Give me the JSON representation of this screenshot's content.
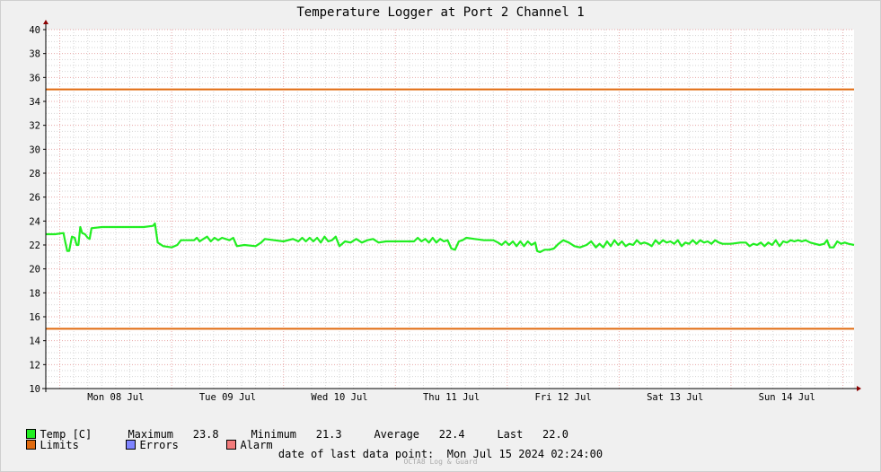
{
  "chart_data": {
    "type": "line",
    "title": "Temperature Logger at Port 2 Channel 1",
    "xlabel": "",
    "ylabel": "",
    "ylim": [
      10,
      40
    ],
    "y_ticks": [
      10,
      12,
      14,
      16,
      18,
      20,
      22,
      24,
      26,
      28,
      30,
      32,
      34,
      36,
      38,
      40
    ],
    "x_range": [
      "2024-07-07 21:00",
      "2024-07-15 02:24"
    ],
    "x_tick_labels": [
      "Mon 08 Jul",
      "Tue 09 Jul",
      "Wed 10 Jul",
      "Thu 11 Jul",
      "Fri 12 Jul",
      "Sat 13 Jul",
      "Sun 14 Jul"
    ],
    "x_tick_dates": [
      "2024-07-08 12:00",
      "2024-07-09 12:00",
      "2024-07-10 12:00",
      "2024-07-11 12:00",
      "2024-07-12 12:00",
      "2024-07-13 12:00",
      "2024-07-14 12:00"
    ],
    "grid": true,
    "limits": {
      "upper": 35,
      "lower": 15
    },
    "series": [
      {
        "name": "Temp [C]",
        "color": "#22ee22",
        "points": [
          [
            "2024-07-07 21:00",
            22.9
          ],
          [
            "2024-07-07 23:00",
            22.9
          ],
          [
            "2024-07-08 00:48",
            23.0
          ],
          [
            "2024-07-08 01:12",
            22.2
          ],
          [
            "2024-07-08 01:36",
            21.5
          ],
          [
            "2024-07-08 02:00",
            21.5
          ],
          [
            "2024-07-08 02:36",
            22.7
          ],
          [
            "2024-07-08 03:12",
            22.6
          ],
          [
            "2024-07-08 03:36",
            22.0
          ],
          [
            "2024-07-08 04:00",
            22.0
          ],
          [
            "2024-07-08 04:24",
            23.5
          ],
          [
            "2024-07-08 04:48",
            23.0
          ],
          [
            "2024-07-08 05:24",
            22.9
          ],
          [
            "2024-07-08 06:00",
            22.6
          ],
          [
            "2024-07-08 06:24",
            22.5
          ],
          [
            "2024-07-08 06:48",
            23.4
          ],
          [
            "2024-07-08 09:00",
            23.5
          ],
          [
            "2024-07-08 12:00",
            23.5
          ],
          [
            "2024-07-08 15:00",
            23.5
          ],
          [
            "2024-07-08 18:00",
            23.5
          ],
          [
            "2024-07-08 20:00",
            23.6
          ],
          [
            "2024-07-08 20:24",
            23.8
          ],
          [
            "2024-07-08 21:00",
            22.2
          ],
          [
            "2024-07-08 22:12",
            21.9
          ],
          [
            "2024-07-09 00:00",
            21.8
          ],
          [
            "2024-07-09 01:12",
            22.0
          ],
          [
            "2024-07-09 02:00",
            22.4
          ],
          [
            "2024-07-09 04:48",
            22.4
          ],
          [
            "2024-07-09 05:24",
            22.6
          ],
          [
            "2024-07-09 06:00",
            22.3
          ],
          [
            "2024-07-09 06:48",
            22.5
          ],
          [
            "2024-07-09 07:36",
            22.7
          ],
          [
            "2024-07-09 08:24",
            22.3
          ],
          [
            "2024-07-09 09:12",
            22.6
          ],
          [
            "2024-07-09 10:00",
            22.4
          ],
          [
            "2024-07-09 10:48",
            22.6
          ],
          [
            "2024-07-09 11:36",
            22.5
          ],
          [
            "2024-07-09 12:24",
            22.4
          ],
          [
            "2024-07-09 13:12",
            22.6
          ],
          [
            "2024-07-09 14:00",
            21.9
          ],
          [
            "2024-07-09 15:36",
            22.0
          ],
          [
            "2024-07-09 18:00",
            21.9
          ],
          [
            "2024-07-09 19:12",
            22.2
          ],
          [
            "2024-07-09 20:00",
            22.5
          ],
          [
            "2024-07-09 22:00",
            22.4
          ],
          [
            "2024-07-10 00:00",
            22.3
          ],
          [
            "2024-07-10 02:00",
            22.5
          ],
          [
            "2024-07-10 03:12",
            22.3
          ],
          [
            "2024-07-10 04:00",
            22.6
          ],
          [
            "2024-07-10 04:48",
            22.3
          ],
          [
            "2024-07-10 05:36",
            22.6
          ],
          [
            "2024-07-10 06:24",
            22.3
          ],
          [
            "2024-07-10 07:12",
            22.6
          ],
          [
            "2024-07-10 08:00",
            22.2
          ],
          [
            "2024-07-10 08:48",
            22.7
          ],
          [
            "2024-07-10 09:36",
            22.3
          ],
          [
            "2024-07-10 10:24",
            22.4
          ],
          [
            "2024-07-10 11:12",
            22.7
          ],
          [
            "2024-07-10 12:00",
            21.9
          ],
          [
            "2024-07-10 13:12",
            22.3
          ],
          [
            "2024-07-10 14:24",
            22.2
          ],
          [
            "2024-07-10 15:36",
            22.5
          ],
          [
            "2024-07-10 16:48",
            22.2
          ],
          [
            "2024-07-10 18:00",
            22.4
          ],
          [
            "2024-07-10 19:12",
            22.5
          ],
          [
            "2024-07-10 20:24",
            22.2
          ],
          [
            "2024-07-10 22:00",
            22.3
          ],
          [
            "2024-07-11 04:00",
            22.3
          ],
          [
            "2024-07-11 04:48",
            22.6
          ],
          [
            "2024-07-11 05:36",
            22.3
          ],
          [
            "2024-07-11 06:24",
            22.5
          ],
          [
            "2024-07-11 07:12",
            22.2
          ],
          [
            "2024-07-11 08:00",
            22.6
          ],
          [
            "2024-07-11 08:48",
            22.2
          ],
          [
            "2024-07-11 09:36",
            22.5
          ],
          [
            "2024-07-11 10:24",
            22.3
          ],
          [
            "2024-07-11 11:12",
            22.4
          ],
          [
            "2024-07-11 12:00",
            21.7
          ],
          [
            "2024-07-11 12:48",
            21.6
          ],
          [
            "2024-07-11 13:36",
            22.3
          ],
          [
            "2024-07-11 14:24",
            22.4
          ],
          [
            "2024-07-11 15:12",
            22.6
          ],
          [
            "2024-07-11 17:00",
            22.5
          ],
          [
            "2024-07-11 19:00",
            22.4
          ],
          [
            "2024-07-11 21:00",
            22.4
          ],
          [
            "2024-07-11 22:00",
            22.2
          ],
          [
            "2024-07-11 22:48",
            22.0
          ],
          [
            "2024-07-11 23:36",
            22.3
          ],
          [
            "2024-07-12 00:24",
            22.0
          ],
          [
            "2024-07-12 01:12",
            22.3
          ],
          [
            "2024-07-12 02:00",
            21.9
          ],
          [
            "2024-07-12 02:48",
            22.3
          ],
          [
            "2024-07-12 03:36",
            21.9
          ],
          [
            "2024-07-12 04:24",
            22.3
          ],
          [
            "2024-07-12 05:12",
            22.0
          ],
          [
            "2024-07-12 06:00",
            22.2
          ],
          [
            "2024-07-12 06:24",
            21.5
          ],
          [
            "2024-07-12 07:00",
            21.4
          ],
          [
            "2024-07-12 08:00",
            21.6
          ],
          [
            "2024-07-12 09:00",
            21.6
          ],
          [
            "2024-07-12 10:00",
            21.7
          ],
          [
            "2024-07-12 11:00",
            22.1
          ],
          [
            "2024-07-12 12:00",
            22.4
          ],
          [
            "2024-07-12 13:12",
            22.2
          ],
          [
            "2024-07-12 14:24",
            21.9
          ],
          [
            "2024-07-12 15:36",
            21.8
          ],
          [
            "2024-07-12 17:00",
            22.0
          ],
          [
            "2024-07-12 18:00",
            22.3
          ],
          [
            "2024-07-12 19:00",
            21.8
          ],
          [
            "2024-07-12 19:48",
            22.1
          ],
          [
            "2024-07-12 20:36",
            21.8
          ],
          [
            "2024-07-12 21:24",
            22.3
          ],
          [
            "2024-07-12 22:12",
            21.9
          ],
          [
            "2024-07-12 23:00",
            22.4
          ],
          [
            "2024-07-12 23:48",
            22.0
          ],
          [
            "2024-07-13 00:36",
            22.3
          ],
          [
            "2024-07-13 01:24",
            21.9
          ],
          [
            "2024-07-13 02:12",
            22.1
          ],
          [
            "2024-07-13 03:00",
            22.0
          ],
          [
            "2024-07-13 03:48",
            22.4
          ],
          [
            "2024-07-13 04:36",
            22.1
          ],
          [
            "2024-07-13 05:24",
            22.2
          ],
          [
            "2024-07-13 06:12",
            22.1
          ],
          [
            "2024-07-13 07:00",
            21.9
          ],
          [
            "2024-07-13 07:48",
            22.4
          ],
          [
            "2024-07-13 08:36",
            22.1
          ],
          [
            "2024-07-13 09:24",
            22.4
          ],
          [
            "2024-07-13 10:12",
            22.2
          ],
          [
            "2024-07-13 11:00",
            22.3
          ],
          [
            "2024-07-13 11:48",
            22.1
          ],
          [
            "2024-07-13 12:36",
            22.4
          ],
          [
            "2024-07-13 13:24",
            21.9
          ],
          [
            "2024-07-13 14:12",
            22.2
          ],
          [
            "2024-07-13 15:00",
            22.1
          ],
          [
            "2024-07-13 15:48",
            22.4
          ],
          [
            "2024-07-13 16:36",
            22.1
          ],
          [
            "2024-07-13 17:24",
            22.4
          ],
          [
            "2024-07-13 18:12",
            22.2
          ],
          [
            "2024-07-13 19:00",
            22.3
          ],
          [
            "2024-07-13 19:48",
            22.1
          ],
          [
            "2024-07-13 20:36",
            22.4
          ],
          [
            "2024-07-13 21:24",
            22.2
          ],
          [
            "2024-07-13 22:12",
            22.1
          ],
          [
            "2024-07-14 00:00",
            22.1
          ],
          [
            "2024-07-14 02:00",
            22.2
          ],
          [
            "2024-07-14 03:12",
            22.2
          ],
          [
            "2024-07-14 04:00",
            21.9
          ],
          [
            "2024-07-14 04:48",
            22.1
          ],
          [
            "2024-07-14 05:36",
            22.0
          ],
          [
            "2024-07-14 06:24",
            22.2
          ],
          [
            "2024-07-14 07:12",
            21.9
          ],
          [
            "2024-07-14 08:00",
            22.2
          ],
          [
            "2024-07-14 08:48",
            22.0
          ],
          [
            "2024-07-14 09:36",
            22.4
          ],
          [
            "2024-07-14 10:24",
            21.9
          ],
          [
            "2024-07-14 11:12",
            22.3
          ],
          [
            "2024-07-14 12:00",
            22.2
          ],
          [
            "2024-07-14 12:48",
            22.4
          ],
          [
            "2024-07-14 13:36",
            22.3
          ],
          [
            "2024-07-14 14:24",
            22.4
          ],
          [
            "2024-07-14 15:12",
            22.3
          ],
          [
            "2024-07-14 16:00",
            22.4
          ],
          [
            "2024-07-14 17:00",
            22.2
          ],
          [
            "2024-07-14 18:00",
            22.1
          ],
          [
            "2024-07-14 19:00",
            22.0
          ],
          [
            "2024-07-14 20:00",
            22.1
          ],
          [
            "2024-07-14 20:36",
            22.4
          ],
          [
            "2024-07-14 21:12",
            21.8
          ],
          [
            "2024-07-14 22:00",
            21.8
          ],
          [
            "2024-07-14 22:48",
            22.3
          ],
          [
            "2024-07-14 23:36",
            22.1
          ],
          [
            "2024-07-15 00:24",
            22.2
          ],
          [
            "2024-07-15 01:12",
            22.1
          ],
          [
            "2024-07-15 02:24",
            22.0
          ]
        ]
      }
    ],
    "colors": {
      "temp": "#22ee22",
      "limits": "#e06a0e",
      "errors": "#7f84ff",
      "alarm": "#f37b7b",
      "grid_major": "#e8a8a8",
      "grid_minor": "#d6d6d6",
      "axis": "#8b0000"
    }
  },
  "legend": {
    "temp_label": "Temp [C]",
    "limits_label": "Limits",
    "errors_label": "Errors",
    "alarm_label": "Alarm",
    "maximum_label": "Maximum",
    "maximum_value": "23.8",
    "minimum_label": "Minimum",
    "minimum_value": "21.3",
    "average_label": "Average",
    "average_value": "22.4",
    "last_label": "Last",
    "last_value": "22.0"
  },
  "footer": {
    "last_point_label": "date of last data point:",
    "last_point_value": "Mon Jul 15 2024 02:24:00",
    "credit": "OCTA8 Log & Guard"
  }
}
